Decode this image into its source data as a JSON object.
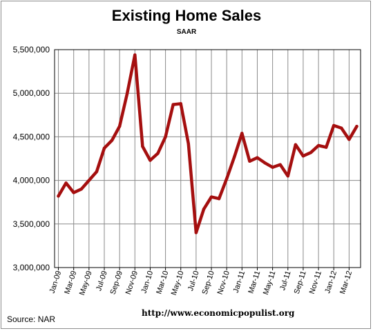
{
  "chart_data": {
    "type": "line",
    "title": "Existing Home Sales",
    "subtitle": "SAAR",
    "source": "Source:  NAR",
    "url": "http://www.economicpopulist.org",
    "xlabel": "",
    "ylabel": "",
    "ylim": [
      3000000,
      5500000
    ],
    "yticks": [
      3000000,
      3500000,
      4000000,
      4500000,
      5000000,
      5500000
    ],
    "ytick_labels": [
      "3,000,000",
      "3,500,000",
      "4,000,000",
      "4,500,000",
      "5,000,000",
      "5,500,000"
    ],
    "grid": true,
    "legend": "none",
    "line_color": "#a50f0f",
    "x": [
      "Jan-09",
      "Feb-09",
      "Mar-09",
      "Apr-09",
      "May-09",
      "Jun-09",
      "Jul-09",
      "Aug-09",
      "Sep-09",
      "Oct-09",
      "Nov-09",
      "Dec-09",
      "Jan-10",
      "Feb-10",
      "Mar-10",
      "Apr-10",
      "May-10",
      "Jun-10",
      "Jul-10",
      "Aug-10",
      "Sep-10",
      "Oct-10",
      "Nov-10",
      "Dec-10",
      "Jan-11",
      "Feb-11",
      "Mar-11",
      "Apr-11",
      "May-11",
      "Jun-11",
      "Jul-11",
      "Aug-11",
      "Sep-11",
      "Oct-11",
      "Nov-11",
      "Dec-11",
      "Jan-12",
      "Feb-12",
      "Mar-12",
      "Apr-12"
    ],
    "x_tick_labels": [
      "Jan-09",
      "Mar-09",
      "May-09",
      "Jul-09",
      "Sep-09",
      "Nov-09",
      "Jan-10",
      "Mar-10",
      "May-10",
      "Jul-10",
      "Sep-10",
      "Nov-10",
      "Jan-11",
      "Mar-11",
      "May-11",
      "Jul-11",
      "Sep-11",
      "Nov-11",
      "Jan-12",
      "Mar-12"
    ],
    "series": [
      {
        "values": [
          3820000,
          3970000,
          3860000,
          3900000,
          4000000,
          4100000,
          4370000,
          4460000,
          4620000,
          5000000,
          5440000,
          4390000,
          4230000,
          4310000,
          4500000,
          4870000,
          4880000,
          4420000,
          3400000,
          3670000,
          3810000,
          3790000,
          4020000,
          4270000,
          4540000,
          4220000,
          4260000,
          4200000,
          4150000,
          4180000,
          4050000,
          4410000,
          4280000,
          4320000,
          4400000,
          4380000,
          4630000,
          4600000,
          4470000,
          4620000
        ]
      }
    ]
  }
}
